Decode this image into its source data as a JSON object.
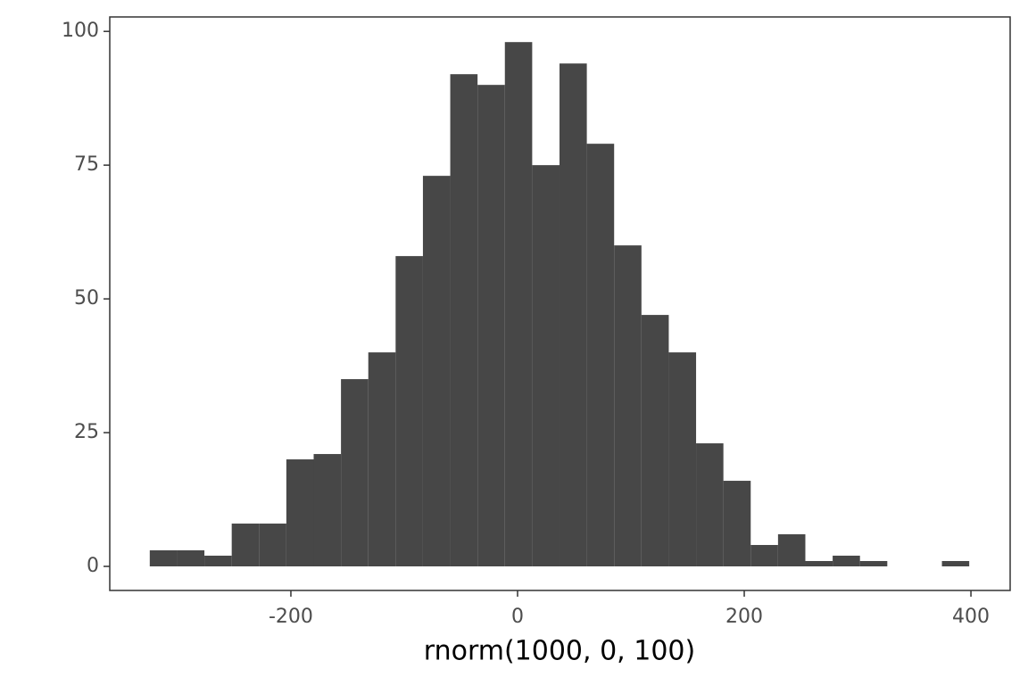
{
  "chart_data": {
    "type": "histogram",
    "x_label": "rnorm(1000, 0, 100)",
    "bins": [
      -324.5,
      -300.4,
      -276.3,
      -252.2,
      -228.1,
      -204,
      -179.9,
      -155.8,
      -131.7,
      -107.6,
      -83.5,
      -59.4,
      -35.3,
      -11.2,
      12.9,
      37,
      61.1,
      85.2,
      109.3,
      133.4,
      157.5,
      181.6,
      205.7,
      229.8,
      253.9,
      278,
      302.1,
      326.2,
      350.3,
      374.4,
      398.5
    ],
    "counts": [
      3,
      3,
      2,
      8,
      8,
      20,
      21,
      35,
      40,
      58,
      73,
      92,
      90,
      98,
      75,
      94,
      79,
      60,
      47,
      40,
      23,
      16,
      4,
      6,
      1,
      2,
      1,
      0,
      0,
      1
    ],
    "color": "#474747",
    "xlim": [
      -359.8,
      434.6
    ],
    "xticks": [
      -200,
      0,
      200,
      400
    ],
    "ylim": [
      -4.5,
      102.7
    ],
    "yticks": [
      0,
      25,
      50,
      75,
      100
    ],
    "grid": false
  }
}
